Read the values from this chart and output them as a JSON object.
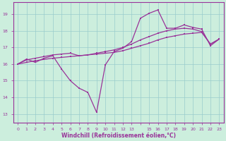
{
  "background_color": "#cceedd",
  "grid_color": "#99cccc",
  "line_color": "#993399",
  "xlabel": "Windchill (Refroidissement éolien,°C)",
  "xlim": [
    -0.5,
    23.5
  ],
  "ylim": [
    12.5,
    19.7
  ],
  "yticks": [
    13,
    14,
    15,
    16,
    17,
    18,
    19
  ],
  "line1_x": [
    0,
    1,
    2,
    3,
    4,
    5,
    6,
    7,
    8,
    9,
    10,
    11,
    12,
    13,
    14,
    15,
    16,
    17,
    18,
    19,
    20,
    21,
    22,
    23
  ],
  "line1_y": [
    16.0,
    16.3,
    16.1,
    16.35,
    16.5,
    15.7,
    15.0,
    14.55,
    14.3,
    13.1,
    15.95,
    16.75,
    16.95,
    17.35,
    18.75,
    19.05,
    19.25,
    18.15,
    18.15,
    18.35,
    18.2,
    18.1,
    17.1,
    17.5
  ],
  "line2_x": [
    0,
    1,
    2,
    3,
    4,
    5,
    6,
    7,
    8,
    9,
    10,
    11,
    12,
    13,
    14,
    15,
    16,
    17,
    18,
    19,
    20,
    21,
    22,
    23
  ],
  "line2_y": [
    16.0,
    16.25,
    16.35,
    16.45,
    16.55,
    16.6,
    16.65,
    16.5,
    16.55,
    16.65,
    16.75,
    16.85,
    17.0,
    17.2,
    17.45,
    17.65,
    17.85,
    18.0,
    18.1,
    18.15,
    18.1,
    17.95,
    17.2,
    17.5
  ],
  "line3_x": [
    0,
    1,
    2,
    3,
    4,
    5,
    6,
    7,
    8,
    9,
    10,
    11,
    12,
    13,
    14,
    15,
    16,
    17,
    18,
    19,
    20,
    21,
    22,
    23
  ],
  "line3_y": [
    16.0,
    16.1,
    16.2,
    16.28,
    16.35,
    16.4,
    16.45,
    16.5,
    16.55,
    16.6,
    16.65,
    16.7,
    16.8,
    16.95,
    17.1,
    17.25,
    17.45,
    17.6,
    17.7,
    17.8,
    17.85,
    17.9,
    17.2,
    17.5
  ]
}
